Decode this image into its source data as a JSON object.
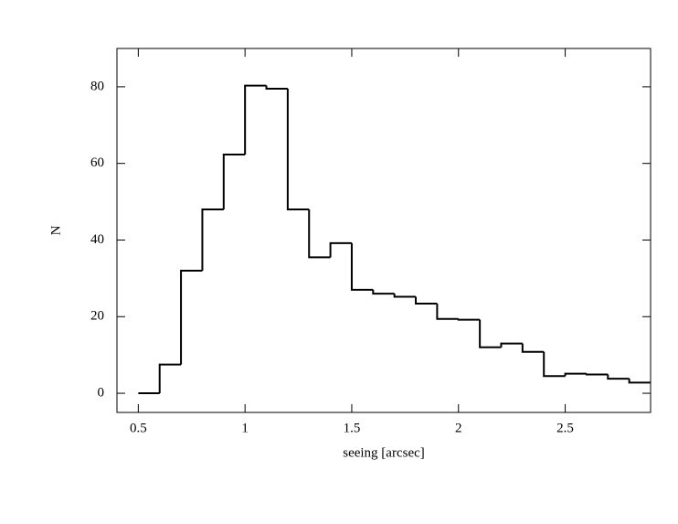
{
  "chart_data": {
    "type": "histogram",
    "xlabel": "seeing [arcsec]",
    "ylabel": "N",
    "bins": [
      0.5,
      0.6,
      0.7,
      0.8,
      0.9,
      1.0,
      1.1,
      1.2,
      1.3,
      1.4,
      1.5,
      1.6,
      1.7,
      1.8,
      1.9,
      2.0,
      2.1,
      2.2,
      2.3,
      2.4,
      2.5,
      2.6,
      2.7,
      2.8,
      2.9
    ],
    "values": [
      0,
      7.5,
      32,
      48,
      62.3,
      80.3,
      79.5,
      48,
      35.5,
      39.2,
      27,
      26,
      25.2,
      23.4,
      19.4,
      19.2,
      12,
      13,
      10.8,
      4.5,
      5.1,
      4.9,
      3.8,
      2.8
    ],
    "color": "#000000",
    "xlim": [
      0.4,
      2.9
    ],
    "ylim": [
      -5,
      90
    ],
    "xticks": [
      0.5,
      1,
      1.5,
      2,
      2.5
    ],
    "yticks": [
      0,
      20,
      40,
      60,
      80
    ]
  }
}
